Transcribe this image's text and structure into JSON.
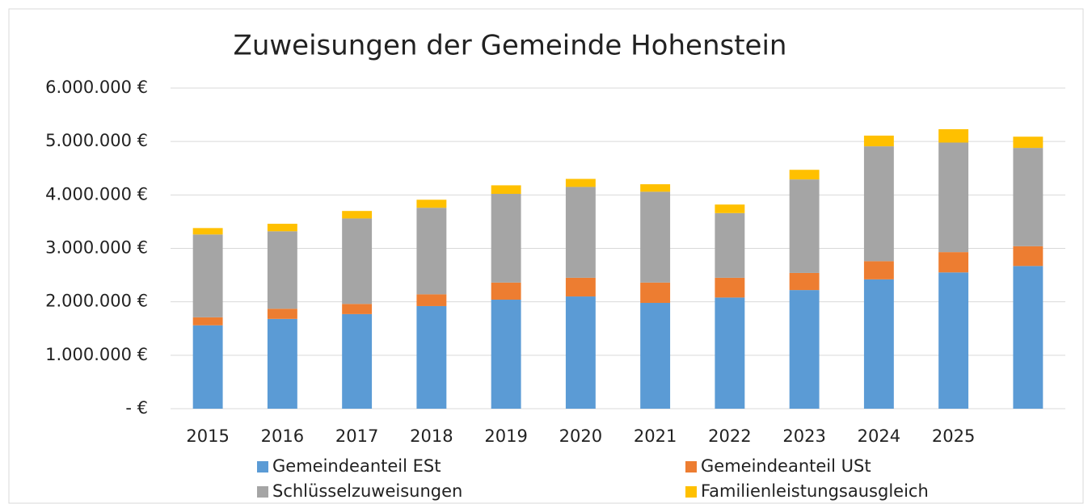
{
  "chart_data": {
    "type": "stacked_bar",
    "title": "Zuweisungen der Gemeinde Hohenstein",
    "categories": [
      "2015",
      "2016",
      "2017",
      "2018",
      "2019",
      "2020",
      "2021",
      "2022",
      "2023",
      "2024",
      "2025",
      null
    ],
    "series": [
      {
        "name": "Gemeindeanteil ESt",
        "color": "#5b9bd5",
        "values": [
          1560000,
          1680000,
          1770000,
          1920000,
          2040000,
          2100000,
          1980000,
          2080000,
          2220000,
          2420000,
          2550000,
          2670000
        ]
      },
      {
        "name": "Gemeindeanteil USt",
        "color": "#ed7d31",
        "values": [
          150000,
          190000,
          190000,
          220000,
          320000,
          350000,
          380000,
          370000,
          320000,
          340000,
          380000,
          370000
        ]
      },
      {
        "name": "Schlüsselzuweisungen",
        "color": "#a5a5a5",
        "values": [
          1550000,
          1450000,
          1600000,
          1620000,
          1660000,
          1700000,
          1700000,
          1210000,
          1750000,
          2150000,
          2050000,
          1840000
        ]
      },
      {
        "name": "Familienleistungsausgleich",
        "color": "#ffc000",
        "values": [
          120000,
          140000,
          140000,
          150000,
          160000,
          150000,
          140000,
          160000,
          180000,
          200000,
          250000,
          210000
        ]
      }
    ],
    "ylim": [
      0,
      6000000
    ],
    "yticks": [
      {
        "value": 0,
        "label": "-   €"
      },
      {
        "value": 1000000,
        "label": "1.000.000 €"
      },
      {
        "value": 2000000,
        "label": "2.000.000 €"
      },
      {
        "value": 3000000,
        "label": "3.000.000 €"
      },
      {
        "value": 4000000,
        "label": "4.000.000 €"
      },
      {
        "value": 5000000,
        "label": "5.000.000 €"
      },
      {
        "value": 6000000,
        "label": "6.000.000 €"
      }
    ],
    "grid": true,
    "legend": "bottom"
  }
}
